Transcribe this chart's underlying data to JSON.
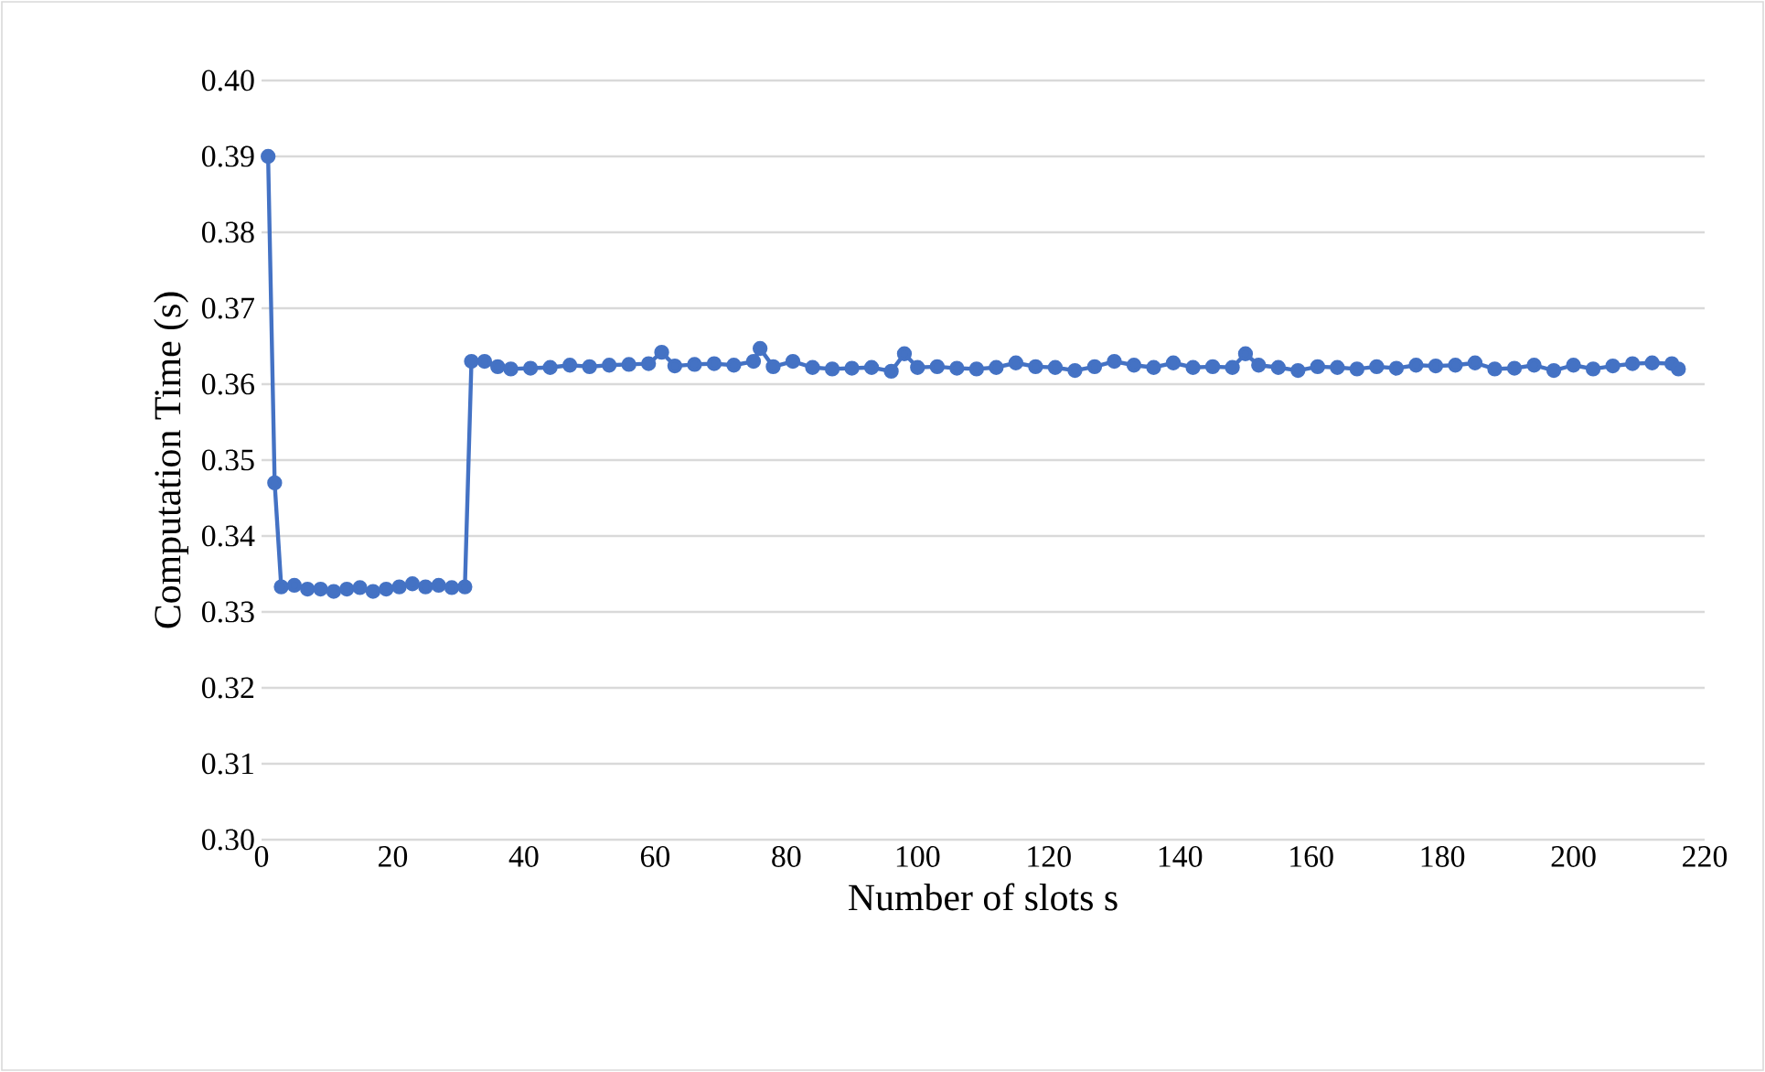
{
  "chart_data": {
    "type": "line",
    "xlabel": "Number of slots s",
    "ylabel": "Computation Time (s)",
    "xlim": [
      0,
      220
    ],
    "xticks": [
      0,
      20,
      40,
      60,
      80,
      100,
      120,
      140,
      160,
      180,
      200,
      220
    ],
    "ylim": [
      0.3,
      0.4
    ],
    "yticks": [
      {
        "value": 0.3,
        "label": "0.30"
      },
      {
        "value": 0.31,
        "label": "0.31"
      },
      {
        "value": 0.32,
        "label": "0.32"
      },
      {
        "value": 0.33,
        "label": "0.33"
      },
      {
        "value": 0.34,
        "label": "0.34"
      },
      {
        "value": 0.35,
        "label": "0.35"
      },
      {
        "value": 0.36,
        "label": "0.36"
      },
      {
        "value": 0.37,
        "label": "0.37"
      },
      {
        "value": 0.38,
        "label": "0.38"
      },
      {
        "value": 0.39,
        "label": "0.39"
      },
      {
        "value": 0.4,
        "label": "0.40"
      }
    ],
    "grid": "y",
    "marker": "circle",
    "line_style": "solid",
    "series": [
      {
        "color": "#4472c4",
        "x": [
          1,
          2,
          3,
          5,
          7,
          9,
          11,
          13,
          15,
          17,
          19,
          21,
          23,
          25,
          27,
          29,
          31,
          32,
          34,
          36,
          38,
          41,
          44,
          47,
          50,
          53,
          56,
          59,
          61,
          63,
          66,
          69,
          72,
          75,
          76,
          78,
          81,
          84,
          87,
          90,
          93,
          96,
          98,
          100,
          103,
          106,
          109,
          112,
          115,
          118,
          121,
          124,
          127,
          130,
          133,
          136,
          139,
          142,
          145,
          148,
          150,
          152,
          155,
          158,
          161,
          164,
          167,
          170,
          173,
          176,
          179,
          182,
          185,
          188,
          191,
          194,
          197,
          200,
          203,
          206,
          209,
          212,
          215,
          216
        ],
        "values": [
          0.39,
          0.347,
          0.3333,
          0.3335,
          0.333,
          0.333,
          0.3327,
          0.333,
          0.3332,
          0.3327,
          0.333,
          0.3333,
          0.3337,
          0.3333,
          0.3335,
          0.3332,
          0.3333,
          0.363,
          0.363,
          0.3623,
          0.362,
          0.3621,
          0.3622,
          0.3625,
          0.3623,
          0.3625,
          0.3626,
          0.3627,
          0.3642,
          0.3624,
          0.3626,
          0.3627,
          0.3625,
          0.363,
          0.3647,
          0.3623,
          0.363,
          0.3622,
          0.362,
          0.3621,
          0.3622,
          0.3617,
          0.364,
          0.3622,
          0.3623,
          0.3621,
          0.362,
          0.3622,
          0.3628,
          0.3623,
          0.3622,
          0.3618,
          0.3623,
          0.363,
          0.3625,
          0.3622,
          0.3628,
          0.3622,
          0.3623,
          0.3622,
          0.364,
          0.3625,
          0.3622,
          0.3618,
          0.3623,
          0.3622,
          0.362,
          0.3623,
          0.3621,
          0.3625,
          0.3624,
          0.3625,
          0.3628,
          0.362,
          0.3621,
          0.3625,
          0.3618,
          0.3625,
          0.362,
          0.3624,
          0.3627,
          0.3628,
          0.3627,
          0.362
        ]
      }
    ]
  }
}
